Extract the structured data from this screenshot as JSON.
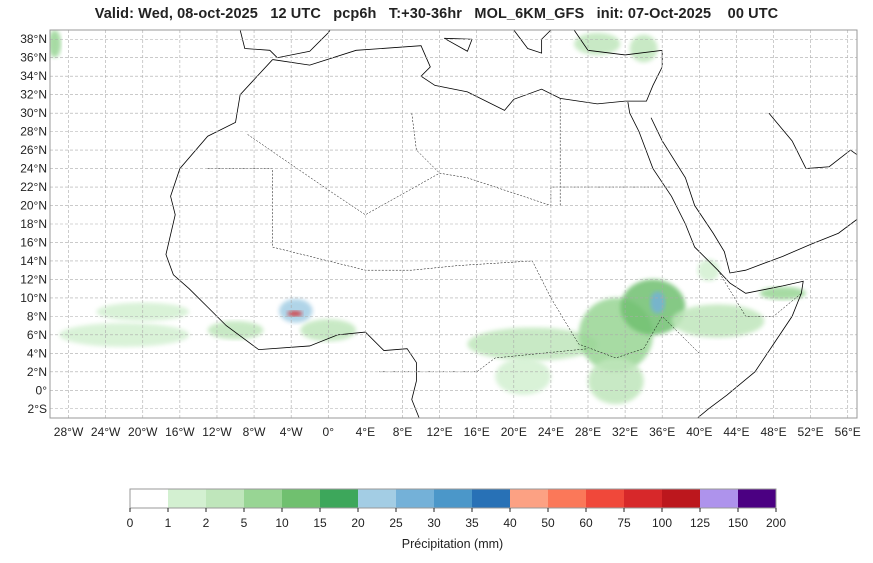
{
  "title": "Valid: Wed, 08-oct-2025   12 UTC   pcp6h   T:+30-36hr   MOL_6KM_GFS   init: 07-Oct-2025    00 UTC",
  "map": {
    "extent": {
      "lon": [
        -30,
        57
      ],
      "lat": [
        -3,
        39
      ]
    },
    "grid": true,
    "lon_ticks": [
      "28°W",
      "24°W",
      "20°W",
      "16°W",
      "12°W",
      "8°W",
      "4°W",
      "0°",
      "4°E",
      "8°E",
      "12°E",
      "16°E",
      "20°E",
      "24°E",
      "28°E",
      "32°E",
      "36°E",
      "40°E",
      "44°E",
      "48°E",
      "52°E",
      "56°E"
    ],
    "lon_values": [
      -28,
      -24,
      -20,
      -16,
      -12,
      -8,
      -4,
      0,
      4,
      8,
      12,
      16,
      20,
      24,
      28,
      32,
      36,
      40,
      44,
      48,
      52,
      56
    ],
    "lat_ticks": [
      "38°N",
      "36°N",
      "34°N",
      "32°N",
      "30°N",
      "28°N",
      "26°N",
      "24°N",
      "22°N",
      "20°N",
      "18°N",
      "16°N",
      "14°N",
      "12°N",
      "10°N",
      "8°N",
      "6°N",
      "4°N",
      "2°N",
      "0°",
      "2°S"
    ],
    "lat_values": [
      38,
      36,
      34,
      32,
      30,
      28,
      26,
      24,
      22,
      20,
      18,
      16,
      14,
      12,
      10,
      8,
      6,
      4,
      2,
      0,
      -2
    ]
  },
  "precip_areas": [
    {
      "lon": -3.5,
      "lat": 8.6,
      "rx": 1.8,
      "ry": 1.3,
      "level": 6
    },
    {
      "lon": -3.6,
      "lat": 8.3,
      "rx": 0.8,
      "ry": 0.3,
      "level": 13
    },
    {
      "lon": -22,
      "lat": 6,
      "rx": 7,
      "ry": 1.3,
      "level": 1
    },
    {
      "lon": -20,
      "lat": 8.5,
      "rx": 5,
      "ry": 1,
      "level": 1
    },
    {
      "lon": -10,
      "lat": 6.5,
      "rx": 3,
      "ry": 1,
      "level": 2
    },
    {
      "lon": 0,
      "lat": 6.5,
      "rx": 3,
      "ry": 1.2,
      "level": 2
    },
    {
      "lon": 22,
      "lat": 5,
      "rx": 7,
      "ry": 1.8,
      "level": 2
    },
    {
      "lon": 21,
      "lat": 1.5,
      "rx": 3,
      "ry": 2,
      "level": 1
    },
    {
      "lon": 31,
      "lat": 6,
      "rx": 4,
      "ry": 4,
      "level": 3
    },
    {
      "lon": 31,
      "lat": 1,
      "rx": 3,
      "ry": 2.5,
      "level": 2
    },
    {
      "lon": 35,
      "lat": 9,
      "rx": 3.5,
      "ry": 3,
      "level": 4
    },
    {
      "lon": 35.5,
      "lat": 9.5,
      "rx": 0.8,
      "ry": 1.2,
      "level": 7
    },
    {
      "lon": 42,
      "lat": 7.5,
      "rx": 5,
      "ry": 1.8,
      "level": 2
    },
    {
      "lon": 49,
      "lat": 10.5,
      "rx": 2.5,
      "ry": 0.7,
      "level": 3
    },
    {
      "lon": 29,
      "lat": 37.5,
      "rx": 2.5,
      "ry": 1.2,
      "level": 2
    },
    {
      "lon": 34,
      "lat": 37,
      "rx": 1.5,
      "ry": 1.5,
      "level": 2
    },
    {
      "lon": -29.5,
      "lat": 37.5,
      "rx": 0.7,
      "ry": 1.5,
      "level": 3
    },
    {
      "lon": 41,
      "lat": 13,
      "rx": 1.2,
      "ry": 1.2,
      "level": 1
    }
  ],
  "colorbar": {
    "label": "Précipitation (mm)",
    "ticks": [
      "0",
      "1",
      "2",
      "5",
      "10",
      "15",
      "20",
      "25",
      "30",
      "35",
      "40",
      "50",
      "60",
      "75",
      "100",
      "125",
      "150",
      "200"
    ],
    "colors": [
      "#ffffff",
      "#d3f0d1",
      "#bfe6bb",
      "#98d594",
      "#70c06f",
      "#3da75b",
      "#a3cde4",
      "#74b1d8",
      "#4b97c9",
      "#2871b6",
      "#fca183",
      "#fb7859",
      "#f0483a",
      "#d7282a",
      "#bc171d",
      "#ae93ec",
      "#4b0082"
    ]
  }
}
